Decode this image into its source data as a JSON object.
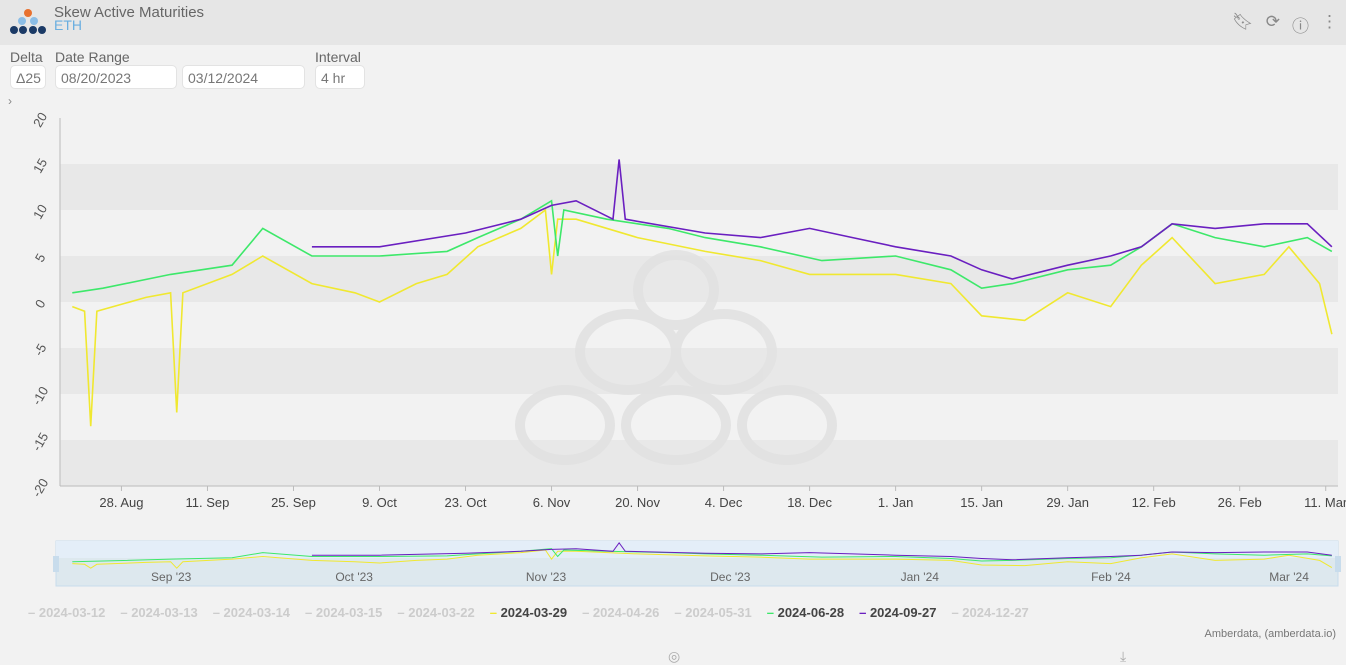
{
  "header": {
    "title": "Skew Active Maturities",
    "subtitle": "ETH",
    "icons": [
      "bookmark-icon",
      "refresh-icon",
      "info-icon",
      "more-icon"
    ]
  },
  "controls": {
    "delta_label": "Delta",
    "delta_value": "Δ25",
    "date_range_label": "Date Range",
    "start_date": "08/20/2023",
    "end_date": "03/12/2024",
    "interval_label": "Interval",
    "interval_value": "4 hr",
    "expand": "›"
  },
  "credit": "Amberdata, (amberdata.io)",
  "colors": {
    "yellow": "#f0e830",
    "green": "#3de86a",
    "purple": "#6a1fc0"
  },
  "chart_data": {
    "type": "line",
    "title": "Skew Active Maturities",
    "ylim": [
      -20,
      20
    ],
    "xlim": [
      "2023-08-18",
      "2024-03-13"
    ],
    "y_ticks": [
      "20",
      "15",
      "10",
      "5",
      "0",
      "-5",
      "-10",
      "-15",
      "-20"
    ],
    "y_tick_values": [
      20,
      15,
      10,
      5,
      0,
      -5,
      -10,
      -15,
      -20
    ],
    "x_ticks": [
      {
        "label": "28. Aug",
        "date": "2023-08-28"
      },
      {
        "label": "11. Sep",
        "date": "2023-09-11"
      },
      {
        "label": "25. Sep",
        "date": "2023-09-25"
      },
      {
        "label": "9. Oct",
        "date": "2023-10-09"
      },
      {
        "label": "23. Oct",
        "date": "2023-10-23"
      },
      {
        "label": "6. Nov",
        "date": "2023-11-06"
      },
      {
        "label": "20. Nov",
        "date": "2023-11-20"
      },
      {
        "label": "4. Dec",
        "date": "2023-12-04"
      },
      {
        "label": "18. Dec",
        "date": "2023-12-18"
      },
      {
        "label": "1. Jan",
        "date": "2024-01-01"
      },
      {
        "label": "15. Jan",
        "date": "2024-01-15"
      },
      {
        "label": "29. Jan",
        "date": "2024-01-29"
      },
      {
        "label": "12. Feb",
        "date": "2024-02-12"
      },
      {
        "label": "26. Feb",
        "date": "2024-02-26"
      },
      {
        "label": "11. Mar",
        "date": "2024-03-11"
      }
    ],
    "navigator_ticks": [
      {
        "label": "Sep '23",
        "date": "2023-09-01"
      },
      {
        "label": "Oct '23",
        "date": "2023-10-01"
      },
      {
        "label": "Nov '23",
        "date": "2023-11-01"
      },
      {
        "label": "Dec '23",
        "date": "2023-12-01"
      },
      {
        "label": "Jan '24",
        "date": "2024-01-01"
      },
      {
        "label": "Feb '24",
        "date": "2024-02-01"
      },
      {
        "label": "Mar '24",
        "date": "2024-03-01"
      }
    ],
    "legend": [
      {
        "name": "2024-03-12",
        "visible": false
      },
      {
        "name": "2024-03-13",
        "visible": false
      },
      {
        "name": "2024-03-14",
        "visible": false
      },
      {
        "name": "2024-03-15",
        "visible": false
      },
      {
        "name": "2024-03-22",
        "visible": false
      },
      {
        "name": "2024-03-29",
        "visible": true,
        "color": "#f0e830"
      },
      {
        "name": "2024-04-26",
        "visible": false
      },
      {
        "name": "2024-05-31",
        "visible": false
      },
      {
        "name": "2024-06-28",
        "visible": true,
        "color": "#3de86a"
      },
      {
        "name": "2024-09-27",
        "visible": true,
        "color": "#6a1fc0"
      },
      {
        "name": "2024-12-27",
        "visible": false
      }
    ],
    "series": [
      {
        "name": "2024-03-29",
        "color": "#f0e830",
        "points": [
          [
            "2023-08-20",
            -0.5
          ],
          [
            "2023-08-22",
            -1
          ],
          [
            "2023-08-23",
            -13.5
          ],
          [
            "2023-08-24",
            -1
          ],
          [
            "2023-09-01",
            0.5
          ],
          [
            "2023-09-05",
            1
          ],
          [
            "2023-09-06",
            -12
          ],
          [
            "2023-09-07",
            1
          ],
          [
            "2023-09-15",
            3
          ],
          [
            "2023-09-20",
            5
          ],
          [
            "2023-09-28",
            2
          ],
          [
            "2023-10-05",
            1
          ],
          [
            "2023-10-09",
            0
          ],
          [
            "2023-10-15",
            2
          ],
          [
            "2023-10-20",
            3
          ],
          [
            "2023-10-25",
            6
          ],
          [
            "2023-11-01",
            8
          ],
          [
            "2023-11-05",
            10
          ],
          [
            "2023-11-06",
            3
          ],
          [
            "2023-11-07",
            9
          ],
          [
            "2023-11-10",
            9
          ],
          [
            "2023-11-20",
            7
          ],
          [
            "2023-12-01",
            5.5
          ],
          [
            "2023-12-10",
            4.5
          ],
          [
            "2023-12-18",
            3
          ],
          [
            "2024-01-01",
            3
          ],
          [
            "2024-01-10",
            2
          ],
          [
            "2024-01-15",
            -1.5
          ],
          [
            "2024-01-22",
            -2
          ],
          [
            "2024-01-29",
            1
          ],
          [
            "2024-02-05",
            -0.5
          ],
          [
            "2024-02-10",
            4
          ],
          [
            "2024-02-15",
            7
          ],
          [
            "2024-02-22",
            2
          ],
          [
            "2024-03-01",
            3
          ],
          [
            "2024-03-05",
            6
          ],
          [
            "2024-03-10",
            2
          ],
          [
            "2024-03-12",
            -3.5
          ]
        ]
      },
      {
        "name": "2024-06-28",
        "color": "#3de86a",
        "points": [
          [
            "2023-08-20",
            1
          ],
          [
            "2023-08-25",
            1.5
          ],
          [
            "2023-09-05",
            3
          ],
          [
            "2023-09-15",
            4
          ],
          [
            "2023-09-20",
            8
          ],
          [
            "2023-09-28",
            5
          ],
          [
            "2023-10-09",
            5
          ],
          [
            "2023-10-20",
            5.5
          ],
          [
            "2023-10-25",
            7
          ],
          [
            "2023-11-01",
            9
          ],
          [
            "2023-11-06",
            11
          ],
          [
            "2023-11-07",
            5
          ],
          [
            "2023-11-08",
            10
          ],
          [
            "2023-11-15",
            9
          ],
          [
            "2023-11-25",
            8
          ],
          [
            "2023-12-01",
            7
          ],
          [
            "2023-12-10",
            6
          ],
          [
            "2023-12-20",
            4.5
          ],
          [
            "2024-01-01",
            5
          ],
          [
            "2024-01-10",
            3.5
          ],
          [
            "2024-01-15",
            1.5
          ],
          [
            "2024-01-20",
            2
          ],
          [
            "2024-01-29",
            3.5
          ],
          [
            "2024-02-05",
            4
          ],
          [
            "2024-02-10",
            6
          ],
          [
            "2024-02-15",
            8.5
          ],
          [
            "2024-02-22",
            7
          ],
          [
            "2024-03-01",
            6
          ],
          [
            "2024-03-08",
            7
          ],
          [
            "2024-03-12",
            5.5
          ]
        ]
      },
      {
        "name": "2024-09-27",
        "color": "#6a1fc0",
        "points": [
          [
            "2023-09-28",
            6
          ],
          [
            "2023-10-09",
            6
          ],
          [
            "2023-10-23",
            7.5
          ],
          [
            "2023-11-01",
            9
          ],
          [
            "2023-11-06",
            10.5
          ],
          [
            "2023-11-10",
            11
          ],
          [
            "2023-11-16",
            9
          ],
          [
            "2023-11-17",
            15.5
          ],
          [
            "2023-11-18",
            9
          ],
          [
            "2023-12-01",
            7.5
          ],
          [
            "2023-12-10",
            7
          ],
          [
            "2023-12-18",
            8
          ],
          [
            "2023-12-25",
            7
          ],
          [
            "2024-01-01",
            6
          ],
          [
            "2024-01-10",
            5
          ],
          [
            "2024-01-15",
            3.5
          ],
          [
            "2024-01-20",
            2.5
          ],
          [
            "2024-01-29",
            4
          ],
          [
            "2024-02-05",
            5
          ],
          [
            "2024-02-10",
            6
          ],
          [
            "2024-02-15",
            8.5
          ],
          [
            "2024-02-22",
            8
          ],
          [
            "2024-03-01",
            8.5
          ],
          [
            "2024-03-08",
            8.5
          ],
          [
            "2024-03-12",
            6
          ]
        ]
      }
    ]
  }
}
